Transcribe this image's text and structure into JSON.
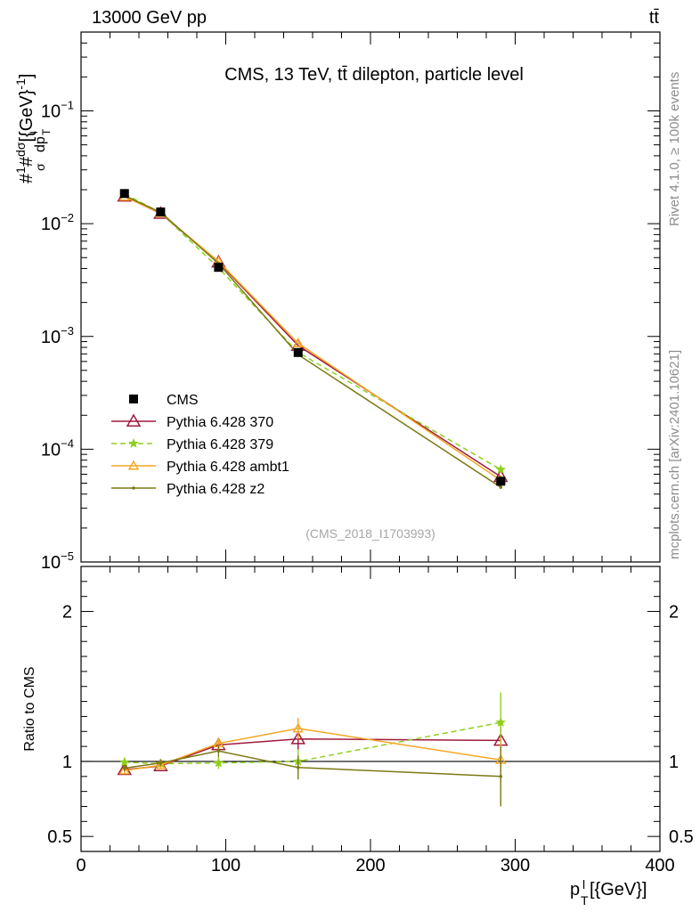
{
  "header": {
    "left": "13000 GeV pp",
    "right": "tt̄",
    "side_top": "Rivet 4.1.0, ≥ 100k events",
    "side_bottom": "mcplots.cern.ch [arXiv:2401.10621]"
  },
  "chart_data": {
    "type": "line",
    "title": "CMS, 13 TeV, tt̄ dilepton, particle level",
    "analysis_tag": "(CMS_2018_I1703993)",
    "xlabel": "p_T^l [{GeV}]",
    "ylabel": "#1/σ # dσ/dp_T^l [{GeV}^-1]",
    "ratio_ylabel": "Ratio to CMS",
    "xlim": [
      0,
      400
    ],
    "ylim": [
      1e-05,
      0.5
    ],
    "yscale": "log",
    "ratio_ylim": [
      0.4,
      2.3
    ],
    "x_ticks": [
      0,
      100,
      200,
      300,
      400
    ],
    "y_ticks": [
      {
        "value": 0.1,
        "base": "10",
        "exp": "−1"
      },
      {
        "value": 0.01,
        "base": "10",
        "exp": "−2"
      },
      {
        "value": 0.001,
        "base": "10",
        "exp": "−3"
      },
      {
        "value": 0.0001,
        "base": "10",
        "exp": "−4"
      },
      {
        "value": 1e-05,
        "base": "10",
        "exp": "−5"
      }
    ],
    "ratio_ticks": [
      {
        "value": 0.5,
        "label": "0.5"
      },
      {
        "value": 1,
        "label": "1"
      },
      {
        "value": 2,
        "label": "2"
      }
    ],
    "x": [
      30,
      55,
      95,
      150,
      290
    ],
    "data": {
      "name": "CMS",
      "values": [
        0.0185,
        0.0127,
        0.0041,
        0.00072,
        5.2e-05
      ],
      "errors": [
        0.0006,
        0.0004,
        0.00015,
        4e-05,
        5e-06
      ]
    },
    "series": [
      {
        "name": "Pythia 6.428 370",
        "color": "#a01a3c",
        "dash": "",
        "marker": "triangle-open",
        "values": [
          0.0175,
          0.0123,
          0.00455,
          0.00083,
          5.7e-05
        ],
        "ratio": [
          0.945,
          0.97,
          1.11,
          1.15,
          1.14
        ],
        "ratio_err": [
          0.02,
          0.02,
          0.04,
          0.07,
          0.15
        ]
      },
      {
        "name": "Pythia 6.428 379",
        "color": "#8fcf1e",
        "dash": "6,4",
        "marker": "star",
        "values": [
          0.0184,
          0.0125,
          0.00405,
          0.00072,
          6.6e-05
        ],
        "ratio": [
          0.995,
          0.985,
          0.99,
          1.0,
          1.26
        ],
        "ratio_err": [
          0.02,
          0.02,
          0.04,
          0.08,
          0.2
        ]
      },
      {
        "name": "Pythia 6.428 ambt1",
        "color": "#f5a623",
        "dash": "",
        "marker": "triangle-open-small",
        "values": [
          0.0173,
          0.0124,
          0.00462,
          0.00087,
          5.3e-05
        ],
        "ratio": [
          0.94,
          0.975,
          1.12,
          1.22,
          1.01
        ],
        "ratio_err": [
          0.02,
          0.02,
          0.04,
          0.07,
          0.15
        ]
      },
      {
        "name": "Pythia 6.428 z2",
        "color": "#7a7a14",
        "dash": "",
        "marker": "dot",
        "values": [
          0.0177,
          0.0126,
          0.00443,
          0.00069,
          4.6e-05
        ],
        "ratio": [
          0.955,
          0.99,
          1.07,
          0.96,
          0.9
        ],
        "ratio_err": [
          0.02,
          0.02,
          0.04,
          0.08,
          0.2
        ]
      }
    ]
  }
}
